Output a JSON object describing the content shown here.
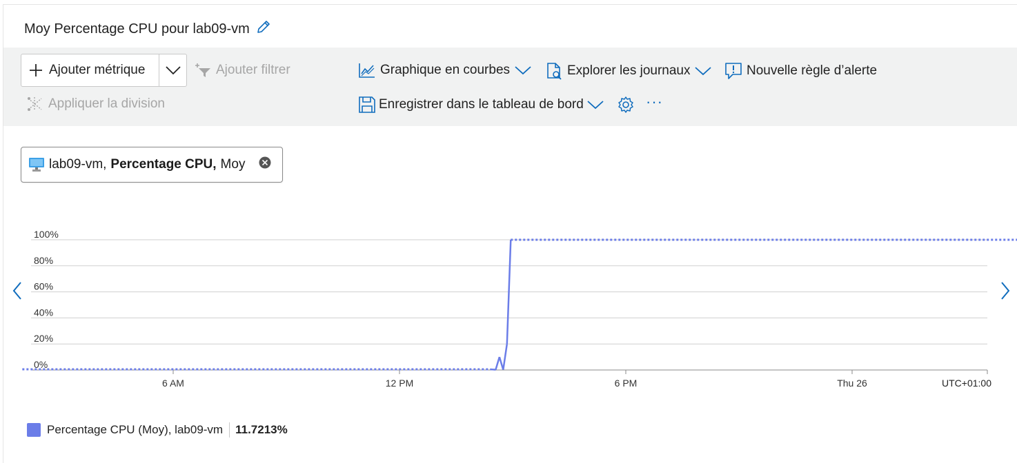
{
  "panel": {
    "title": "Moy Percentage CPU pour lab09-vm"
  },
  "toolbar": {
    "add_metric": "Ajouter métrique",
    "add_filter": "Ajouter filtrer",
    "apply_split": "Appliquer la division",
    "line_chart": "Graphique en courbes",
    "explore_logs": "Explorer les journaux",
    "new_alert": "Nouvelle règle d’alerte",
    "save_dashboard": "Enregistrer dans le tableau de bord",
    "more": "···"
  },
  "metric_chip": {
    "resource": "lab09-vm,",
    "metric": "Percentage CPU,",
    "aggregation": "Moy"
  },
  "chart_data": {
    "type": "line",
    "y_ticks": [
      "100%",
      "80%",
      "60%",
      "40%",
      "20%",
      "0%"
    ],
    "x_ticks": [
      "6 AM",
      "12 PM",
      "6 PM",
      "Thu 26"
    ],
    "timezone": "UTC+01:00",
    "ylim": [
      0,
      100
    ],
    "grid": true,
    "series": [
      {
        "name": "Percentage CPU (Moy), lab09-vm",
        "color": "#6b7de8",
        "points": [
          {
            "t": 2.0,
            "v": 0.5,
            "dotted": true
          },
          {
            "t": 14.4,
            "v": 0.5,
            "dotted": true
          },
          {
            "t": 14.55,
            "v": 0.2
          },
          {
            "t": 14.65,
            "v": 10
          },
          {
            "t": 14.75,
            "v": 0.2
          },
          {
            "t": 14.85,
            "v": 20
          },
          {
            "t": 14.95,
            "v": 100
          },
          {
            "t": 30.1,
            "v": 100,
            "dotted": true
          }
        ]
      }
    ]
  },
  "legend": {
    "label": "Percentage CPU (Moy), lab09-vm",
    "value": "11.7213%"
  },
  "colors": {
    "accent": "#0f6cbd",
    "series": "#6b7de8",
    "toolbar_bg": "#f1f2f2"
  }
}
